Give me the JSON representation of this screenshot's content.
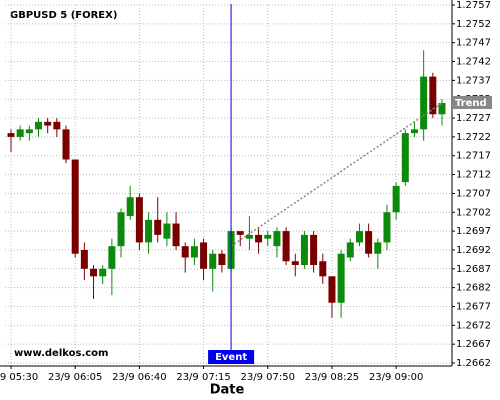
{
  "chart_data": {
    "type": "candlestick",
    "title": "GBPUSD 5 (FOREX)",
    "watermark": "www.delkos.com",
    "x_label": "Date",
    "categories": [
      "23/9 05:30",
      null,
      null,
      null,
      null,
      null,
      null,
      "23/9 06:05",
      null,
      null,
      null,
      null,
      null,
      null,
      "23/9 06:40",
      null,
      null,
      null,
      null,
      null,
      null,
      "23/9 07:15",
      null,
      null,
      null,
      null,
      null,
      null,
      "23/9 07:50",
      null,
      null,
      null,
      null,
      null,
      null,
      "23/9 08:25",
      null,
      null,
      null,
      null,
      null,
      null,
      "23/9 09:00",
      null,
      null,
      null,
      null,
      null
    ],
    "open": [
      1.2723,
      1.2722,
      1.2723,
      1.2724,
      1.2726,
      1.2726,
      1.2724,
      1.2716,
      1.2692,
      1.2687,
      1.2685,
      1.2687,
      1.2693,
      1.2701,
      1.2706,
      1.2694,
      1.27,
      1.2695,
      1.2699,
      1.2693,
      1.269,
      1.2694,
      1.2687,
      1.2691,
      1.2687,
      1.2697,
      1.2695,
      1.2696,
      1.2695,
      1.2693,
      1.2697,
      1.2689,
      1.2688,
      1.2696,
      1.2689,
      1.2685,
      1.2678,
      1.269,
      1.2694,
      1.2697,
      1.2691,
      1.2694,
      1.2702,
      1.271,
      1.2723,
      1.2724,
      1.2738,
      1.2728
    ],
    "high": [
      1.2724,
      1.2725,
      1.2725,
      1.2727,
      1.2727,
      1.2727,
      1.2725,
      1.2716,
      1.2694,
      1.2688,
      1.2688,
      1.2695,
      1.2703,
      1.2709,
      1.2707,
      1.2702,
      1.2706,
      1.2702,
      1.2702,
      1.2694,
      1.2695,
      1.2695,
      1.2692,
      1.2692,
      1.2698,
      1.2697,
      1.2701,
      1.2698,
      1.2697,
      1.2698,
      1.2698,
      1.2691,
      1.2697,
      1.2697,
      1.2691,
      1.2685,
      1.2692,
      1.2695,
      1.2699,
      1.2699,
      1.2695,
      1.2704,
      1.271,
      1.2724,
      1.2726,
      1.2745,
      1.2739,
      1.2732
    ],
    "low": [
      1.2718,
      1.2721,
      1.2721,
      1.2722,
      1.2723,
      1.2722,
      1.2715,
      1.269,
      1.2684,
      1.2679,
      1.2683,
      1.268,
      1.269,
      1.27,
      1.2692,
      1.2691,
      1.2694,
      1.2693,
      1.2692,
      1.2686,
      1.2688,
      1.2684,
      1.2681,
      1.2686,
      1.2686,
      1.2693,
      1.2692,
      1.2691,
      1.2693,
      1.269,
      1.2688,
      1.2685,
      1.2687,
      1.2686,
      1.2683,
      1.2674,
      1.2674,
      1.2689,
      1.2693,
      1.269,
      1.2687,
      1.2692,
      1.27,
      1.2709,
      1.2722,
      1.2721,
      1.2727,
      1.2725
    ],
    "close": [
      1.2722,
      1.2724,
      1.2724,
      1.2726,
      1.2725,
      1.2724,
      1.2716,
      1.2691,
      1.2687,
      1.2685,
      1.2687,
      1.2693,
      1.2702,
      1.2706,
      1.2694,
      1.27,
      1.2696,
      1.2699,
      1.2693,
      1.269,
      1.2693,
      1.2687,
      1.2691,
      1.2688,
      1.2697,
      1.2696,
      1.2696,
      1.2694,
      1.2696,
      1.2697,
      1.2689,
      1.2688,
      1.2696,
      1.2688,
      1.2685,
      1.2678,
      1.2691,
      1.2694,
      1.2697,
      1.2691,
      1.2694,
      1.2702,
      1.2709,
      1.2723,
      1.2724,
      1.2738,
      1.2728,
      1.2731
    ],
    "up_color": "#0b8a0b",
    "down_color": "#7a0000",
    "ylim": [
      1.2662,
      1.2757
    ],
    "yticks": [
      1.2757,
      1.2752,
      1.2747,
      1.2742,
      1.2737,
      1.2732,
      1.2727,
      1.2722,
      1.2717,
      1.2712,
      1.2707,
      1.2702,
      1.2697,
      1.2692,
      1.2687,
      1.2682,
      1.2677,
      1.2672,
      1.2667,
      1.2662
    ],
    "grid": true,
    "event": {
      "label": "Event",
      "index": 24,
      "color": "#0000ee"
    },
    "trend": {
      "label": "Trend",
      "start_index": 24,
      "start_value": 1.2693,
      "end_index": 47,
      "end_value": 1.2731,
      "color": "#888888"
    }
  }
}
